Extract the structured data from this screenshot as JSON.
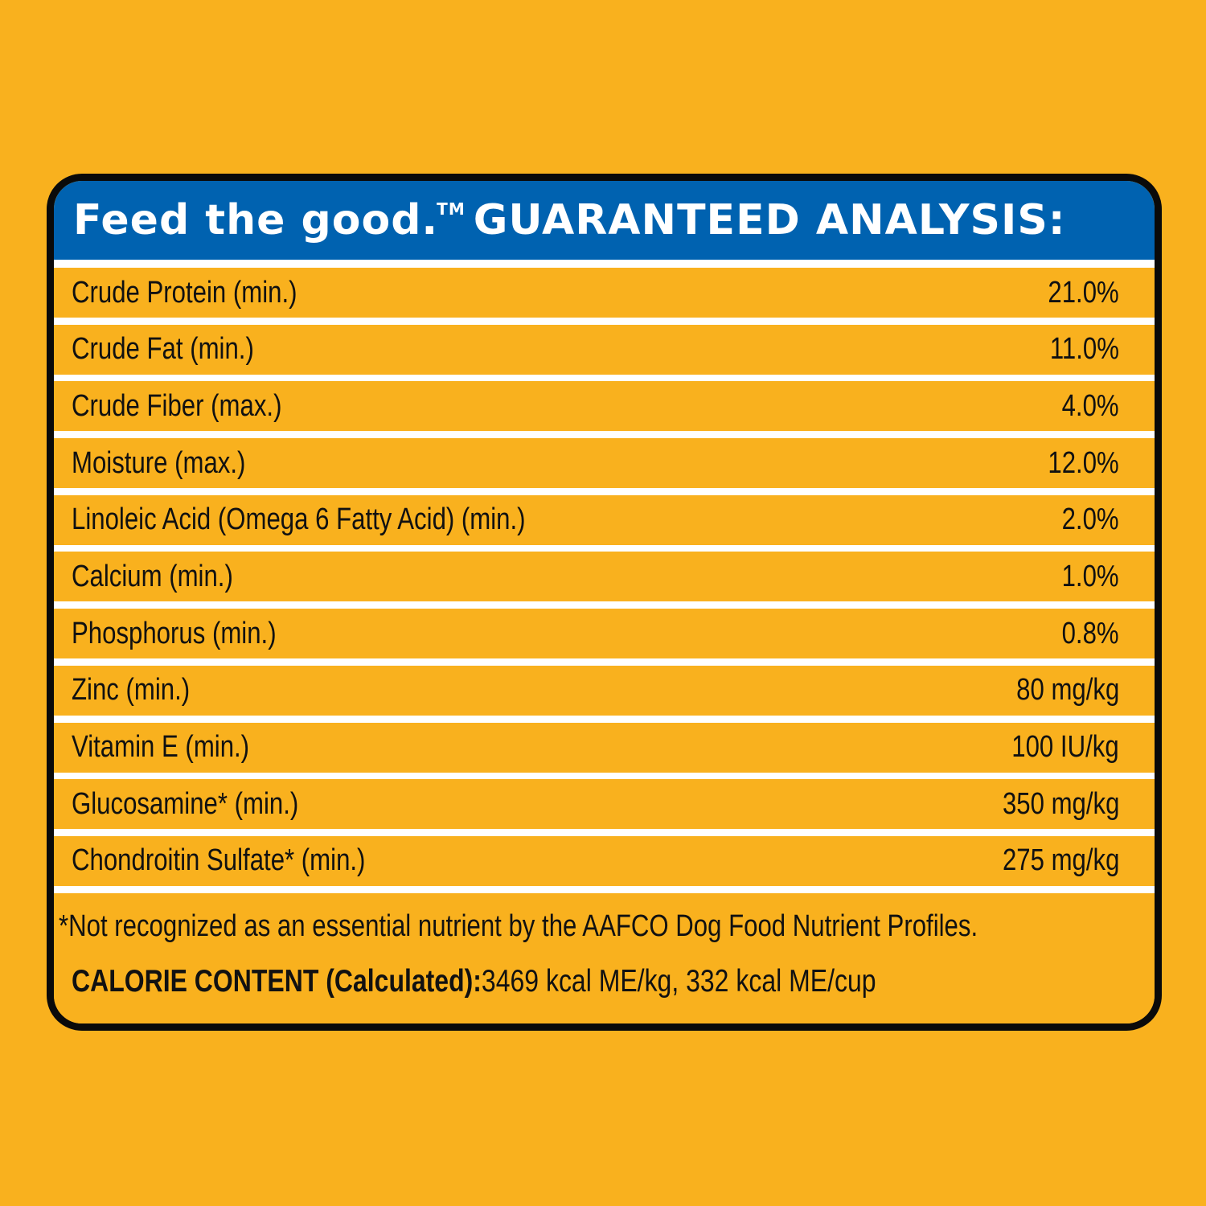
{
  "header": {
    "brand": "Feed the good.",
    "trademark": "TM",
    "title": "GUARANTEED ANALYSIS:"
  },
  "nutrients": [
    {
      "label": "Crude Protein (min.)",
      "value": "21.0%"
    },
    {
      "label": "Crude Fat (min.)",
      "value": "11.0%"
    },
    {
      "label": "Crude Fiber (max.)",
      "value": "4.0%"
    },
    {
      "label": "Moisture (max.)",
      "value": "12.0%"
    },
    {
      "label": "Linoleic Acid (Omega 6 Fatty Acid) (min.)",
      "value": "2.0%"
    },
    {
      "label": "Calcium (min.)",
      "value": "1.0%"
    },
    {
      "label": "Phosphorus (min.)",
      "value": "0.8%"
    },
    {
      "label": "Zinc (min.)",
      "value": "80 mg/kg"
    },
    {
      "label": "Vitamin E (min.)",
      "value": "100 IU/kg"
    },
    {
      "label": "Glucosamine* (min.)",
      "value": "350 mg/kg"
    },
    {
      "label": "Chondroitin Sulfate* (min.)",
      "value": "275 mg/kg"
    }
  ],
  "footer": {
    "footnote": "*Not recognized as an essential nutrient by the AAFCO Dog Food Nutrient Profiles.",
    "calorie_label": "CALORIE CONTENT (Calculated):",
    "calorie_value": "3469 kcal ME/kg, 332 kcal ME/cup"
  },
  "colors": {
    "background": "#f9b11e",
    "header_blue": "#0062b0",
    "border": "#0a0a0a",
    "divider": "#ffffff"
  }
}
